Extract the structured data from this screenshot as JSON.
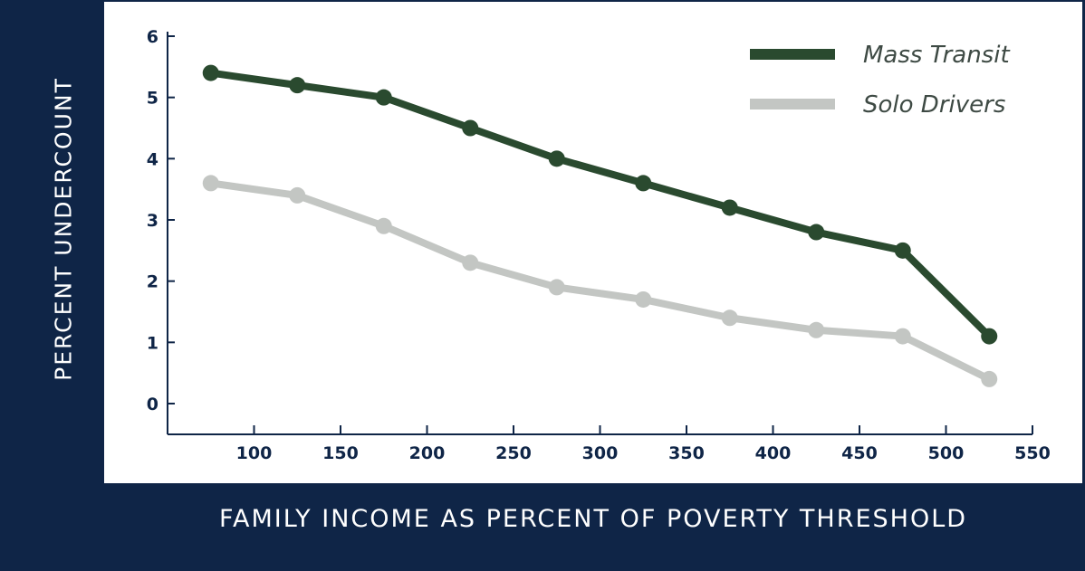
{
  "chart_data": {
    "type": "line",
    "xlabel": "FAMILY INCOME AS PERCENT OF POVERTY THRESHOLD",
    "ylabel": "PERCENT UNDERCOUNT",
    "xlim": [
      50,
      550
    ],
    "ylim": [
      0,
      6
    ],
    "x_ticks": [
      100,
      150,
      200,
      250,
      300,
      350,
      400,
      450,
      500,
      550
    ],
    "y_ticks": [
      0,
      1,
      2,
      3,
      4,
      5,
      6
    ],
    "x": [
      75,
      125,
      175,
      225,
      275,
      325,
      375,
      425,
      475,
      525
    ],
    "series": [
      {
        "name": "Mass Transit",
        "color": "#2a4a2f",
        "values": [
          5.4,
          5.2,
          5.0,
          4.5,
          4.0,
          3.6,
          3.2,
          2.8,
          2.5,
          1.1
        ]
      },
      {
        "name": "Solo Drivers",
        "color": "#c3c6c3",
        "values": [
          3.6,
          3.4,
          2.9,
          2.3,
          1.9,
          1.7,
          1.4,
          1.2,
          1.1,
          0.4
        ]
      }
    ],
    "legend_position": "top-right",
    "grid": false
  },
  "colors": {
    "frame": "#0f2547",
    "panel": "#ffffff",
    "axis": "#0f2547",
    "tick_label": "#0f2547",
    "legend_text": "#3e4a44"
  }
}
